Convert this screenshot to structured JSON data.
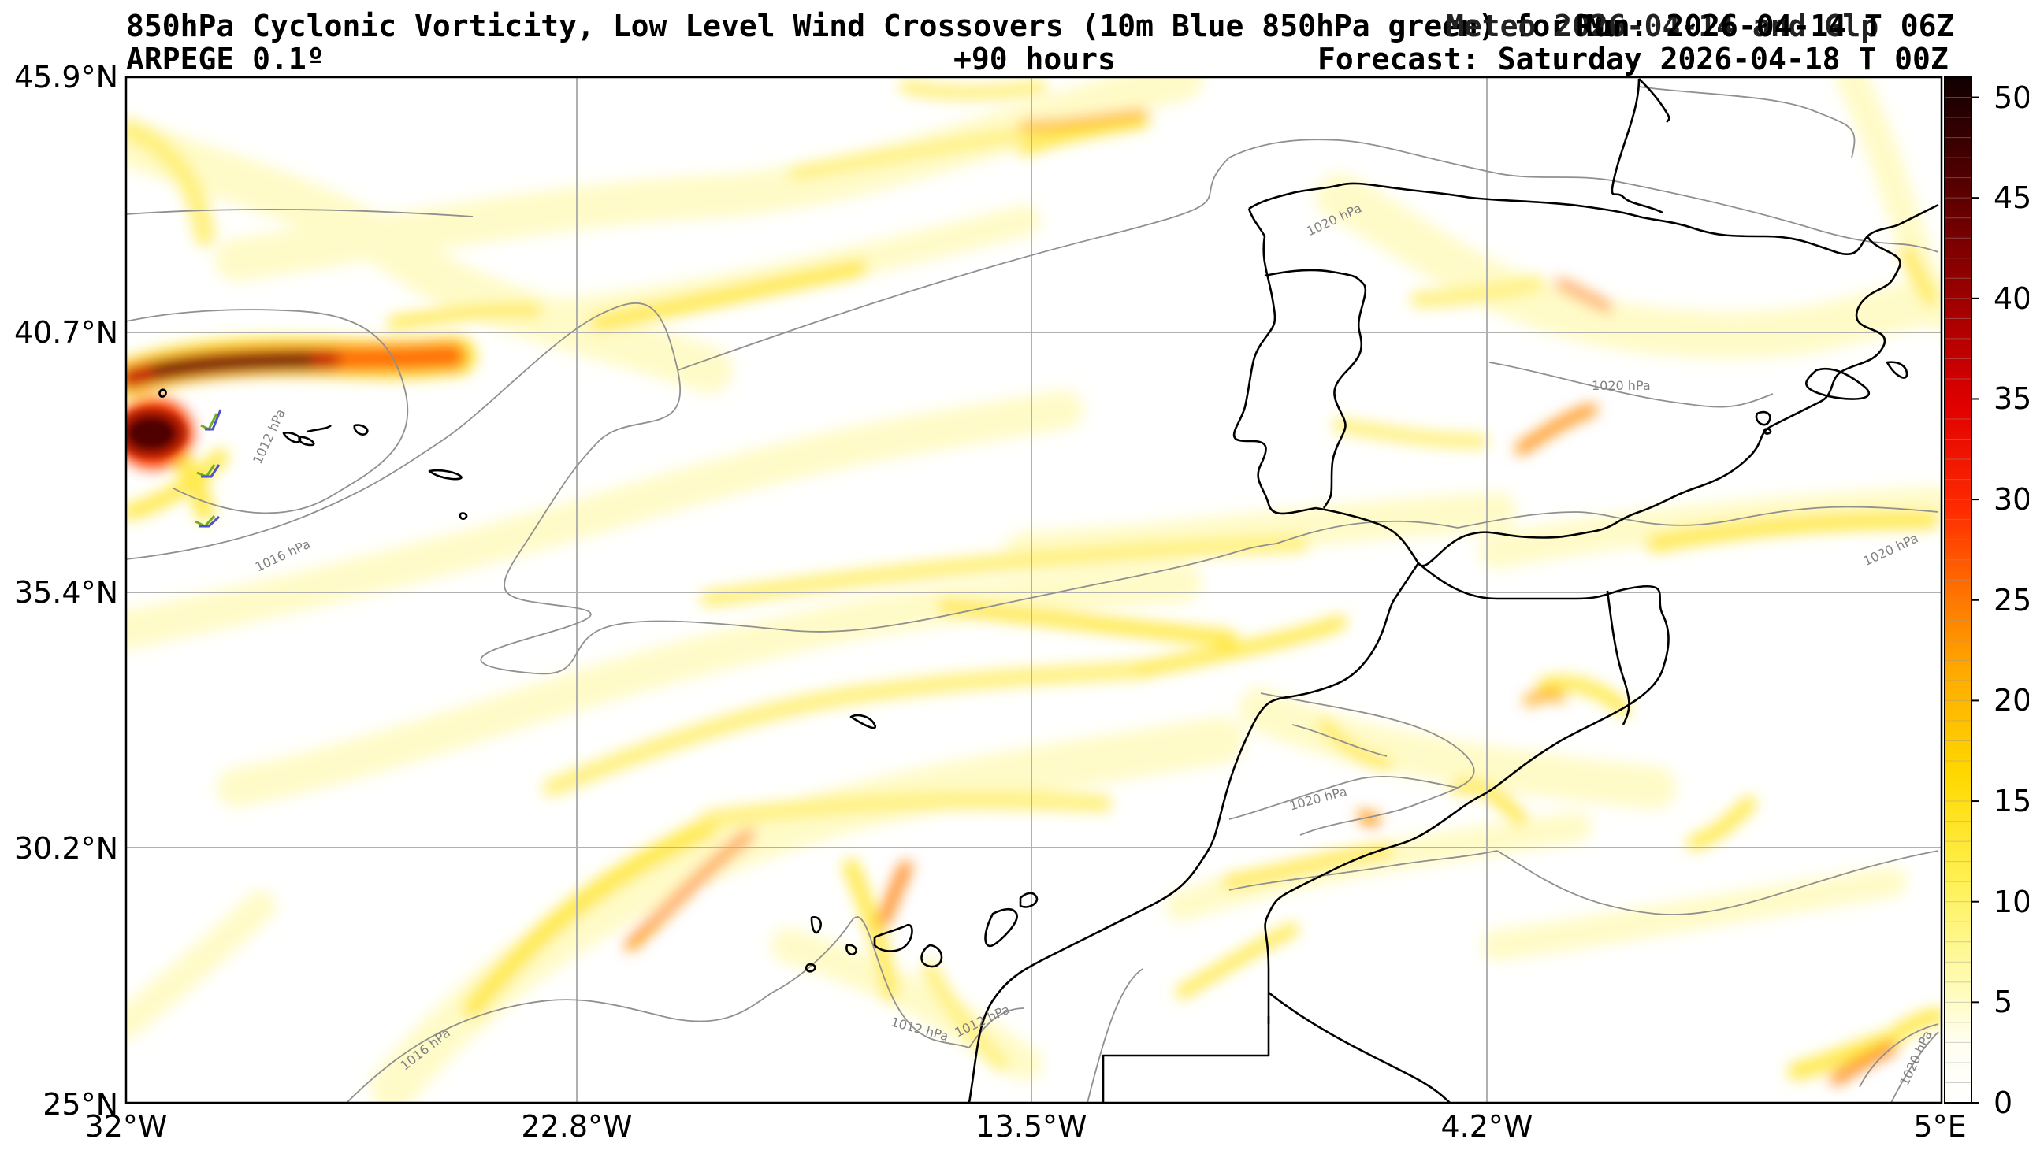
{
  "titles": {
    "line1_left": "850hPa Cyclonic Vorticity, Low Level Wind Crossovers (10m Blue 850hPa green) for Mu",
    "line1_right": "Run: 2026-04-14 T 06Z",
    "line1_overlap": "Meteo 2026-04-14 and Glp",
    "line2_left": "ARPEGE 0.1º",
    "line2_center": "+90 hours",
    "line2_right": "Forecast: Saturday 2026-04-18 T 00Z"
  },
  "axes": {
    "lat_labels": [
      "45.9°N",
      "40.7°N",
      "35.4°N",
      "30.2°N",
      "25°N"
    ],
    "lon_labels": [
      "32°W",
      "22.8°W",
      "13.5°W",
      "4.2°W",
      "5°E"
    ]
  },
  "colorbar": {
    "labels": [
      "50",
      "45",
      "40",
      "35",
      "30",
      "25",
      "20",
      "15",
      "10",
      "5",
      "0"
    ],
    "min": 0,
    "max": 51
  },
  "isobar_labels": [
    "1012 hPa",
    "1016 hPa",
    "1020 hPa",
    "1020 hPa",
    "1020 hPa",
    "1020 hPa",
    "1016 hPa",
    "1012 hPa",
    "1012 hPa",
    "1020 hPa"
  ],
  "colors": {
    "low": "#fffab0",
    "yellow": "#ffe600",
    "orange": "#ff9800",
    "red": "#e01000",
    "darkred": "#700000",
    "black": "#150000",
    "grid": "#b0b0b0",
    "isobar": "#909090",
    "coast": "#000000"
  }
}
